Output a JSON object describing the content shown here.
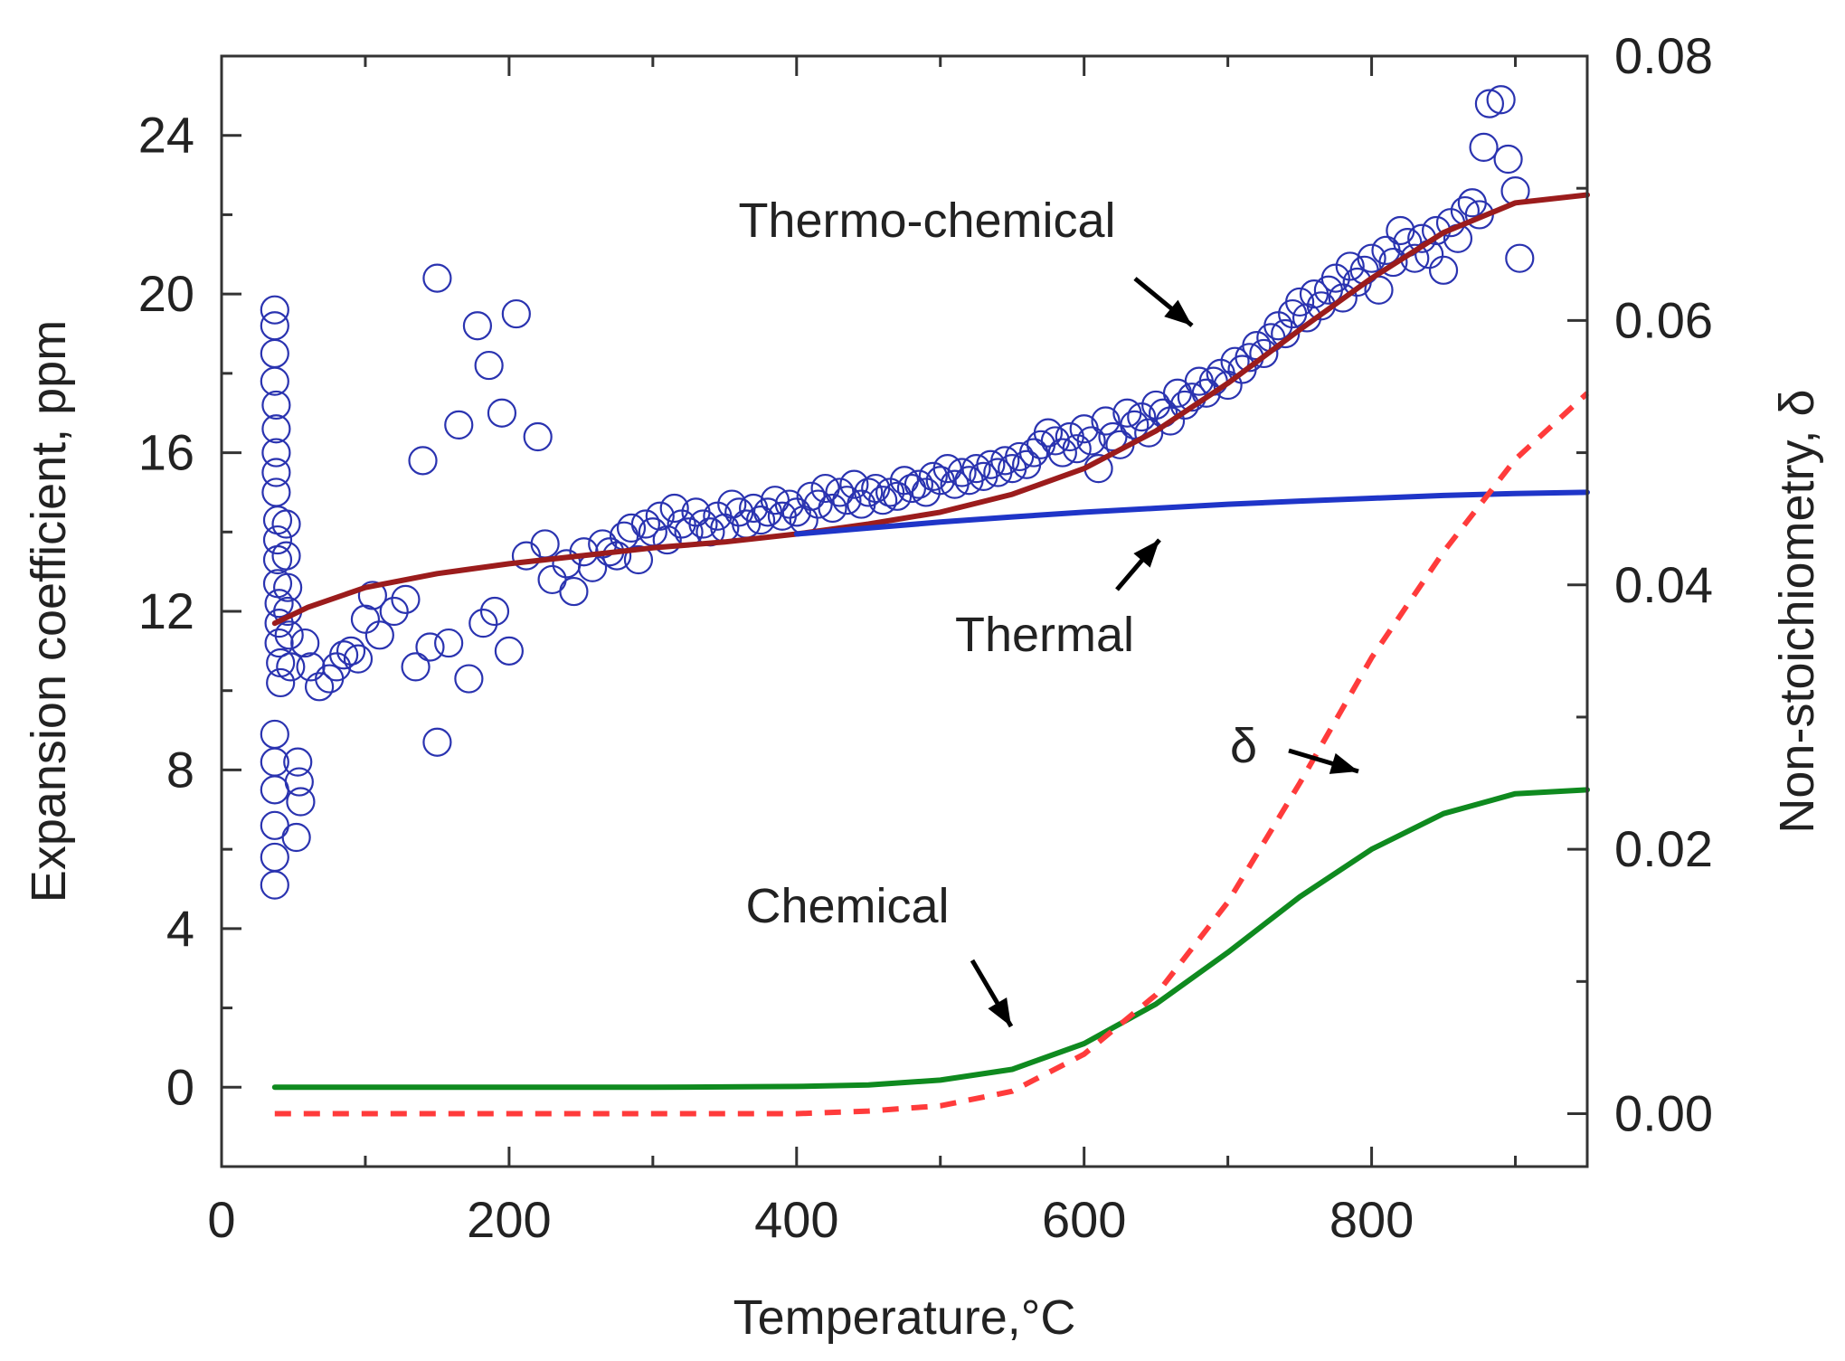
{
  "chart_data": {
    "type": "line",
    "xlabel": "Temperature,°C",
    "ylabel_left": "Expansion coefficient, ppm",
    "ylabel_right": "Non-stoichiometry, δ",
    "xlim": [
      0,
      950
    ],
    "ylim_left": [
      -2,
      26
    ],
    "ylim_right": [
      -0.004,
      0.08
    ],
    "x_ticks": [
      0,
      200,
      400,
      600,
      800
    ],
    "y_left_ticks": [
      0,
      4,
      8,
      12,
      16,
      20,
      24
    ],
    "y_right_ticks": [
      0.0,
      0.02,
      0.04,
      0.06,
      0.08
    ],
    "y_right_tick_labels": [
      "0.00",
      "0.02",
      "0.04",
      "0.06",
      "0.08"
    ],
    "grid": false,
    "colors": {
      "measured": "#2a33b0",
      "thermo_chemical": "#9b1c1c",
      "thermal": "#1f35c8",
      "chemical": "#0f8a1f",
      "delta": "#ff3b3b",
      "arrow": "#000000"
    },
    "annotations": [
      {
        "label": "Thermo-chemical",
        "target": "thermo_chemical"
      },
      {
        "label": "Thermal",
        "target": "thermal"
      },
      {
        "label": "δ",
        "target": "delta"
      },
      {
        "label": "Chemical",
        "target": "chemical"
      }
    ],
    "series": [
      {
        "name": "measured",
        "kind": "scatter",
        "axis": "left",
        "points": [
          [
            37,
            19.6
          ],
          [
            37,
            19.2
          ],
          [
            37,
            18.5
          ],
          [
            37,
            17.8
          ],
          [
            38,
            17.2
          ],
          [
            38,
            16.6
          ],
          [
            38,
            16.0
          ],
          [
            38,
            15.5
          ],
          [
            38,
            15.0
          ],
          [
            39,
            14.3
          ],
          [
            39,
            13.8
          ],
          [
            39,
            13.3
          ],
          [
            39,
            12.7
          ],
          [
            40,
            12.2
          ],
          [
            40,
            11.7
          ],
          [
            40,
            11.2
          ],
          [
            41,
            10.7
          ],
          [
            41,
            10.2
          ],
          [
            37,
            8.9
          ],
          [
            37,
            8.2
          ],
          [
            37,
            7.5
          ],
          [
            37,
            6.6
          ],
          [
            37,
            5.8
          ],
          [
            37,
            5.1
          ],
          [
            45,
            14.2
          ],
          [
            45,
            13.4
          ],
          [
            46,
            12.6
          ],
          [
            46,
            12.0
          ],
          [
            47,
            11.4
          ],
          [
            48,
            10.6
          ],
          [
            53,
            8.2
          ],
          [
            54,
            7.7
          ],
          [
            55,
            7.2
          ],
          [
            52,
            6.3
          ],
          [
            58,
            11.2
          ],
          [
            62,
            10.6
          ],
          [
            68,
            10.1
          ],
          [
            75,
            10.3
          ],
          [
            80,
            10.6
          ],
          [
            85,
            10.9
          ],
          [
            90,
            11.0
          ],
          [
            95,
            10.8
          ],
          [
            100,
            11.8
          ],
          [
            105,
            12.4
          ],
          [
            110,
            11.4
          ],
          [
            120,
            12.0
          ],
          [
            128,
            12.3
          ],
          [
            135,
            10.6
          ],
          [
            140,
            15.8
          ],
          [
            145,
            11.1
          ],
          [
            150,
            8.7
          ],
          [
            150,
            20.4
          ],
          [
            158,
            11.2
          ],
          [
            165,
            16.7
          ],
          [
            172,
            10.3
          ],
          [
            178,
            19.2
          ],
          [
            182,
            11.7
          ],
          [
            186,
            18.2
          ],
          [
            190,
            12.0
          ],
          [
            195,
            17.0
          ],
          [
            200,
            11.0
          ],
          [
            205,
            19.5
          ],
          [
            212,
            13.4
          ],
          [
            220,
            16.4
          ],
          [
            225,
            13.7
          ],
          [
            230,
            12.8
          ],
          [
            240,
            13.2
          ],
          [
            245,
            12.5
          ],
          [
            252,
            13.5
          ],
          [
            258,
            13.1
          ],
          [
            265,
            13.7
          ],
          [
            270,
            13.5
          ],
          [
            275,
            13.4
          ],
          [
            280,
            13.9
          ],
          [
            285,
            14.1
          ],
          [
            290,
            13.3
          ],
          [
            295,
            14.2
          ],
          [
            300,
            14.0
          ],
          [
            305,
            14.4
          ],
          [
            310,
            13.8
          ],
          [
            315,
            14.6
          ],
          [
            320,
            14.2
          ],
          [
            325,
            14.0
          ],
          [
            330,
            14.5
          ],
          [
            335,
            14.2
          ],
          [
            340,
            14.0
          ],
          [
            345,
            14.4
          ],
          [
            350,
            14.1
          ],
          [
            355,
            14.7
          ],
          [
            360,
            14.5
          ],
          [
            365,
            14.2
          ],
          [
            370,
            14.6
          ],
          [
            375,
            14.3
          ],
          [
            380,
            14.5
          ],
          [
            385,
            14.8
          ],
          [
            390,
            14.4
          ],
          [
            395,
            14.7
          ],
          [
            400,
            14.5
          ],
          [
            405,
            14.3
          ],
          [
            410,
            14.9
          ],
          [
            415,
            14.7
          ],
          [
            420,
            15.1
          ],
          [
            425,
            14.6
          ],
          [
            430,
            15.0
          ],
          [
            435,
            14.8
          ],
          [
            440,
            15.2
          ],
          [
            445,
            14.7
          ],
          [
            450,
            15.0
          ],
          [
            455,
            15.1
          ],
          [
            460,
            14.8
          ],
          [
            465,
            15.0
          ],
          [
            470,
            14.9
          ],
          [
            475,
            15.3
          ],
          [
            480,
            15.1
          ],
          [
            485,
            15.2
          ],
          [
            490,
            15.0
          ],
          [
            495,
            15.4
          ],
          [
            500,
            15.3
          ],
          [
            505,
            15.6
          ],
          [
            510,
            15.2
          ],
          [
            515,
            15.5
          ],
          [
            520,
            15.3
          ],
          [
            525,
            15.6
          ],
          [
            530,
            15.4
          ],
          [
            535,
            15.7
          ],
          [
            540,
            15.5
          ],
          [
            545,
            15.8
          ],
          [
            550,
            15.6
          ],
          [
            555,
            15.9
          ],
          [
            560,
            15.7
          ],
          [
            565,
            16.0
          ],
          [
            570,
            16.2
          ],
          [
            575,
            16.5
          ],
          [
            580,
            16.3
          ],
          [
            585,
            16.0
          ],
          [
            590,
            16.4
          ],
          [
            595,
            16.1
          ],
          [
            600,
            16.6
          ],
          [
            605,
            16.3
          ],
          [
            610,
            15.6
          ],
          [
            615,
            16.8
          ],
          [
            620,
            16.4
          ],
          [
            625,
            16.2
          ],
          [
            630,
            17.0
          ],
          [
            635,
            16.7
          ],
          [
            640,
            16.9
          ],
          [
            645,
            16.5
          ],
          [
            650,
            17.2
          ],
          [
            655,
            17.0
          ],
          [
            660,
            16.8
          ],
          [
            665,
            17.5
          ],
          [
            670,
            17.2
          ],
          [
            675,
            17.4
          ],
          [
            680,
            17.8
          ],
          [
            685,
            17.5
          ],
          [
            690,
            17.8
          ],
          [
            695,
            18.0
          ],
          [
            700,
            17.7
          ],
          [
            705,
            18.3
          ],
          [
            710,
            18.1
          ],
          [
            715,
            18.4
          ],
          [
            720,
            18.7
          ],
          [
            725,
            18.5
          ],
          [
            730,
            18.9
          ],
          [
            735,
            19.2
          ],
          [
            740,
            19.0
          ],
          [
            745,
            19.5
          ],
          [
            750,
            19.8
          ],
          [
            755,
            19.4
          ],
          [
            760,
            20.0
          ],
          [
            765,
            19.7
          ],
          [
            770,
            20.1
          ],
          [
            775,
            20.4
          ],
          [
            780,
            19.9
          ],
          [
            785,
            20.7
          ],
          [
            790,
            20.3
          ],
          [
            795,
            20.6
          ],
          [
            800,
            20.9
          ],
          [
            805,
            20.1
          ],
          [
            810,
            21.1
          ],
          [
            815,
            20.8
          ],
          [
            820,
            21.6
          ],
          [
            825,
            21.3
          ],
          [
            830,
            20.9
          ],
          [
            835,
            21.4
          ],
          [
            840,
            21.0
          ],
          [
            845,
            21.6
          ],
          [
            850,
            20.6
          ],
          [
            855,
            21.8
          ],
          [
            860,
            21.4
          ],
          [
            865,
            22.1
          ],
          [
            870,
            22.3
          ],
          [
            875,
            22.0
          ],
          [
            878,
            23.7
          ],
          [
            882,
            24.8
          ],
          [
            890,
            24.9
          ],
          [
            895,
            23.4
          ],
          [
            900,
            22.6
          ],
          [
            903,
            20.9
          ]
        ]
      },
      {
        "name": "thermo_chemical",
        "kind": "line",
        "axis": "left",
        "style": "solid",
        "points": [
          [
            37,
            11.7
          ],
          [
            60,
            12.1
          ],
          [
            100,
            12.6
          ],
          [
            150,
            12.95
          ],
          [
            200,
            13.2
          ],
          [
            250,
            13.4
          ],
          [
            300,
            13.6
          ],
          [
            350,
            13.75
          ],
          [
            400,
            13.95
          ],
          [
            450,
            14.2
          ],
          [
            500,
            14.5
          ],
          [
            550,
            14.95
          ],
          [
            600,
            15.6
          ],
          [
            650,
            16.55
          ],
          [
            700,
            17.75
          ],
          [
            750,
            19.1
          ],
          [
            800,
            20.4
          ],
          [
            850,
            21.55
          ],
          [
            900,
            22.3
          ],
          [
            950,
            22.5
          ]
        ]
      },
      {
        "name": "thermal",
        "kind": "line",
        "axis": "left",
        "style": "solid",
        "points": [
          [
            400,
            13.95
          ],
          [
            450,
            14.1
          ],
          [
            500,
            14.25
          ],
          [
            550,
            14.38
          ],
          [
            600,
            14.5
          ],
          [
            650,
            14.6
          ],
          [
            700,
            14.7
          ],
          [
            750,
            14.78
          ],
          [
            800,
            14.85
          ],
          [
            850,
            14.92
          ],
          [
            900,
            14.97
          ],
          [
            950,
            15.0
          ]
        ]
      },
      {
        "name": "chemical",
        "kind": "line",
        "axis": "left",
        "style": "solid",
        "points": [
          [
            37,
            0.0
          ],
          [
            200,
            0.0
          ],
          [
            300,
            0.0
          ],
          [
            400,
            0.02
          ],
          [
            450,
            0.06
          ],
          [
            500,
            0.18
          ],
          [
            550,
            0.45
          ],
          [
            600,
            1.1
          ],
          [
            650,
            2.1
          ],
          [
            700,
            3.4
          ],
          [
            750,
            4.8
          ],
          [
            800,
            6.0
          ],
          [
            850,
            6.9
          ],
          [
            900,
            7.4
          ],
          [
            950,
            7.5
          ]
        ]
      },
      {
        "name": "delta",
        "kind": "line",
        "axis": "right",
        "style": "dashed",
        "points": [
          [
            37,
            0.0
          ],
          [
            400,
            0.0
          ],
          [
            450,
            0.0002
          ],
          [
            500,
            0.0006
          ],
          [
            550,
            0.0017
          ],
          [
            600,
            0.0045
          ],
          [
            650,
            0.009
          ],
          [
            700,
            0.016
          ],
          [
            750,
            0.025
          ],
          [
            800,
            0.0345
          ],
          [
            850,
            0.0425
          ],
          [
            900,
            0.0495
          ],
          [
            950,
            0.0545
          ]
        ]
      }
    ]
  }
}
